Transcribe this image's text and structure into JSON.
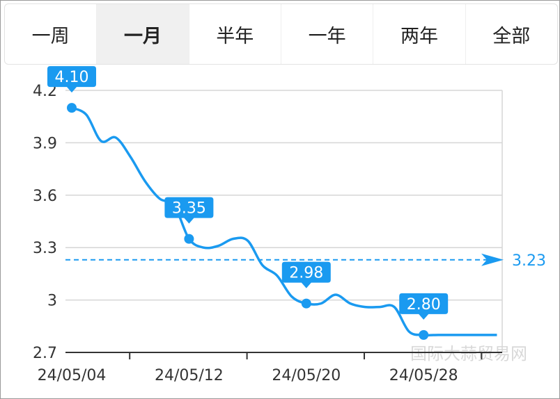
{
  "tabs": [
    "一周",
    "一月",
    "半年",
    "一年",
    "两年",
    "全部"
  ],
  "active_tab": "一月",
  "chart_data": {
    "type": "line",
    "color": "#1a9af0",
    "categories": [
      "24/05/04",
      null,
      null,
      null,
      null,
      null,
      null,
      null,
      "24/05/12",
      null,
      null,
      null,
      null,
      null,
      null,
      null,
      "24/05/20",
      null,
      null,
      null,
      null,
      null,
      null,
      null,
      "24/05/28",
      null,
      null,
      null,
      null,
      null
    ],
    "values": [
      4.1,
      4.06,
      3.91,
      3.93,
      3.82,
      3.68,
      3.58,
      3.54,
      3.35,
      3.3,
      3.31,
      3.35,
      3.34,
      3.2,
      3.14,
      3.02,
      2.98,
      2.98,
      3.03,
      2.98,
      2.96,
      2.96,
      2.96,
      2.82,
      2.8,
      2.8,
      2.8,
      2.8,
      2.8,
      2.8
    ],
    "value_labels": [
      "4.10",
      null,
      null,
      null,
      null,
      null,
      null,
      null,
      "3.35",
      null,
      null,
      null,
      null,
      null,
      null,
      null,
      "2.98",
      null,
      null,
      null,
      null,
      null,
      null,
      null,
      "2.80",
      null,
      null,
      null,
      null,
      null
    ],
    "reference_line": 3.23,
    "ylim": [
      2.7,
      4.2
    ],
    "yticks": [
      4.2,
      3.9,
      3.6,
      3.3,
      3,
      2.7
    ],
    "grid": true
  },
  "watermark": "国际大蒜贸易网"
}
